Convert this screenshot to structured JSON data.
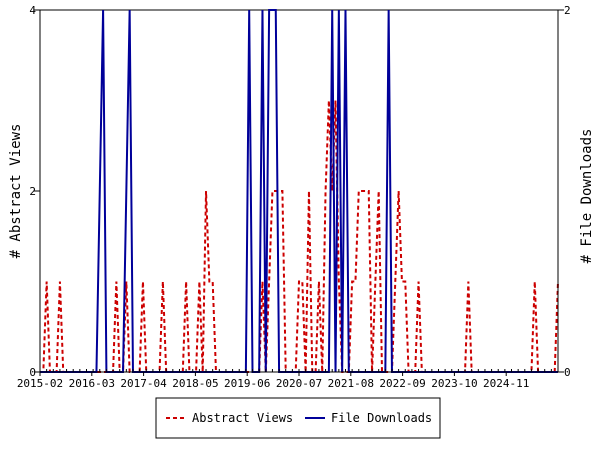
{
  "chart_data": {
    "type": "line",
    "title": "",
    "x_tick_labels": [
      "2015-02",
      "2016-03",
      "2017-04",
      "2018-05",
      "2019-06",
      "2020-07",
      "2021-08",
      "2022-09",
      "2023-10",
      "2024-11"
    ],
    "y_left": {
      "label": "# Abstract Views",
      "ticks": [
        0,
        2,
        4
      ],
      "range": [
        0,
        4
      ]
    },
    "y_right": {
      "label": "# File Downloads",
      "ticks": [
        0,
        2
      ],
      "range": [
        0,
        2
      ]
    },
    "legend_placement": "bottom-center",
    "series": [
      {
        "name": "Abstract Views",
        "axis": "left",
        "color": "#cc0000",
        "style": "dashed",
        "values": [
          0,
          0,
          1,
          0,
          0,
          0,
          1,
          0,
          0,
          0,
          0,
          0,
          0,
          0,
          0,
          0,
          0,
          0,
          0,
          0,
          0,
          0,
          0,
          1,
          0,
          0,
          1,
          0,
          0,
          0,
          0,
          1,
          0,
          0,
          0,
          0,
          0,
          1,
          0,
          0,
          0,
          0,
          0,
          0,
          1,
          0,
          0,
          0,
          1,
          0,
          2,
          1,
          1,
          0,
          0,
          0,
          0,
          0,
          0,
          0,
          0,
          0,
          0,
          0,
          0,
          0,
          0,
          1,
          0,
          1,
          2,
          2,
          2,
          2,
          0,
          0,
          0,
          0,
          1,
          1,
          0,
          2,
          0,
          0,
          1,
          0,
          2,
          3,
          2,
          3,
          1,
          0,
          0,
          0,
          1,
          1,
          2,
          2,
          2,
          2,
          0,
          1,
          2,
          0,
          0,
          0,
          0,
          1,
          2,
          1,
          1,
          0,
          0,
          0,
          1,
          0,
          0,
          0,
          0,
          0,
          0,
          0,
          0,
          0,
          0,
          0,
          0,
          0,
          0,
          1,
          0,
          0,
          0,
          0,
          0,
          0,
          0,
          0,
          0,
          0,
          0,
          0,
          0,
          0,
          0,
          0,
          0,
          0,
          0,
          1,
          0,
          0,
          0,
          0,
          0,
          0,
          1
        ]
      },
      {
        "name": "File Downloads",
        "axis": "right",
        "color": "#000099",
        "style": "solid",
        "values": [
          0,
          0,
          0,
          0,
          0,
          0,
          0,
          0,
          0,
          0,
          0,
          0,
          0,
          0,
          0,
          0,
          0,
          0,
          1,
          2,
          0,
          0,
          0,
          0,
          0,
          0,
          1,
          2,
          0,
          0,
          0,
          0,
          0,
          0,
          0,
          0,
          0,
          0,
          0,
          0,
          0,
          0,
          0,
          0,
          0,
          0,
          0,
          0,
          0,
          0,
          0,
          0,
          0,
          0,
          0,
          0,
          0,
          0,
          0,
          0,
          0,
          0,
          0,
          2,
          0,
          0,
          0,
          2,
          0,
          2,
          2,
          2,
          0,
          0,
          0,
          0,
          0,
          0,
          0,
          0,
          0,
          0,
          0,
          0,
          0,
          0,
          0,
          0,
          2,
          0,
          2,
          0,
          2,
          0,
          0,
          0,
          0,
          0,
          0,
          0,
          0,
          0,
          0,
          0,
          0,
          2,
          0,
          0,
          0,
          0,
          0,
          0,
          0,
          0,
          0,
          0,
          0,
          0,
          0,
          0,
          0,
          0,
          0,
          0,
          0,
          0,
          0,
          0,
          0,
          0,
          0,
          0,
          0,
          0,
          0,
          0,
          0,
          0,
          0,
          0,
          0,
          0,
          0,
          0,
          0,
          0,
          0,
          0,
          0,
          0,
          0,
          0,
          0,
          0,
          0,
          0,
          0
        ]
      }
    ]
  }
}
